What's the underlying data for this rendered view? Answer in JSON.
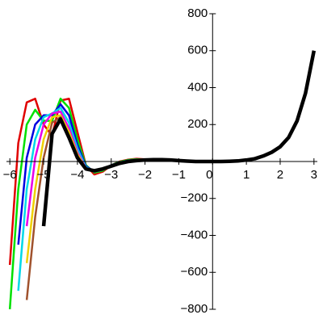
{
  "chart_data": {
    "type": "line",
    "x": [
      -6,
      -5.75,
      -5.5,
      -5.25,
      -5,
      -4.75,
      -4.5,
      -4.25,
      -4,
      -3.75,
      -3.5,
      -3.25,
      -3,
      -2.75,
      -2.5,
      -2.25,
      -2,
      -1.75,
      -1.5,
      -1.25,
      -1,
      -0.75,
      -0.5,
      -0.25,
      0,
      0.25,
      0.5,
      0.75,
      1,
      1.25,
      1.5,
      1.75,
      2,
      2.25,
      2.5,
      2.75,
      3
    ],
    "series": [
      {
        "color": "#e00000",
        "width": 2.5,
        "values": [
          -560,
          100,
          320,
          340,
          200,
          140,
          330,
          340,
          160,
          -20,
          -70,
          -55,
          -20,
          0,
          10,
          15,
          12,
          10,
          null,
          null,
          null,
          null,
          null,
          null,
          null,
          null,
          null,
          null,
          null,
          null,
          null,
          null,
          null,
          null,
          null,
          null,
          null
        ]
      },
      {
        "color": "#00e000",
        "width": 2.5,
        "values": [
          -800,
          -150,
          200,
          280,
          220,
          220,
          340,
          290,
          120,
          -20,
          -60,
          -50,
          -20,
          -2,
          8,
          12,
          10,
          10,
          null,
          null,
          null,
          null,
          null,
          null,
          null,
          null,
          null,
          null,
          null,
          null,
          null,
          null,
          null,
          null,
          null,
          null,
          null
        ]
      },
      {
        "color": "#0000e0",
        "width": 2.5,
        "values": [
          null,
          -450,
          20,
          200,
          250,
          250,
          310,
          250,
          90,
          -25,
          -55,
          -45,
          -20,
          -5,
          5,
          10,
          9,
          10,
          null,
          null,
          null,
          null,
          null,
          null,
          null,
          null,
          null,
          null,
          null,
          null,
          null,
          null,
          null,
          null,
          null,
          null,
          null
        ]
      },
      {
        "color": "#00d8e8",
        "width": 2.5,
        "values": [
          null,
          -700,
          -150,
          120,
          240,
          260,
          290,
          210,
          70,
          -30,
          -55,
          -45,
          -22,
          -6,
          4,
          9,
          9,
          10,
          null,
          null,
          null,
          null,
          null,
          null,
          null,
          null,
          null,
          null,
          null,
          null,
          null,
          null,
          null,
          null,
          null,
          null,
          null
        ]
      },
      {
        "color": "#e800e8",
        "width": 2.5,
        "values": [
          null,
          null,
          -350,
          20,
          200,
          260,
          270,
          180,
          50,
          -35,
          -55,
          -45,
          -24,
          -8,
          3,
          8,
          9,
          10,
          null,
          null,
          null,
          null,
          null,
          null,
          null,
          null,
          null,
          null,
          null,
          null,
          null,
          null,
          null,
          null,
          null,
          null,
          null
        ]
      },
      {
        "color": "#f0d000",
        "width": 2.5,
        "values": [
          null,
          null,
          -550,
          -150,
          120,
          240,
          250,
          160,
          40,
          -38,
          -53,
          -43,
          -25,
          -9,
          2,
          7,
          8,
          10,
          null,
          null,
          null,
          null,
          null,
          null,
          null,
          null,
          null,
          null,
          null,
          null,
          null,
          null,
          null,
          null,
          null,
          null,
          null
        ]
      },
      {
        "color": "#a0522d",
        "width": 2.5,
        "values": [
          null,
          null,
          -750,
          -300,
          20,
          210,
          240,
          140,
          30,
          -40,
          -52,
          -42,
          -25,
          -10,
          1,
          6,
          8,
          10,
          null,
          null,
          null,
          null,
          null,
          null,
          null,
          null,
          null,
          null,
          null,
          null,
          null,
          null,
          null,
          null,
          null,
          null,
          null
        ]
      },
      {
        "color": "#000000",
        "width": 4.5,
        "values": [
          null,
          null,
          null,
          null,
          -350,
          150,
          230,
          130,
          20,
          -40,
          -50,
          -40,
          -25,
          -10,
          0,
          5,
          8,
          10,
          10,
          8,
          5,
          2,
          0,
          0,
          0,
          0,
          1,
          3,
          8,
          15,
          30,
          50,
          80,
          130,
          220,
          370,
          600
        ]
      }
    ],
    "xlim": [
      -6.1,
      3.1
    ],
    "ylim": [
      -800,
      800
    ],
    "xticks": [
      {
        "value": -6,
        "label": "−6"
      },
      {
        "value": -5,
        "label": "−5"
      },
      {
        "value": -4,
        "label": "−4"
      },
      {
        "value": -3,
        "label": "−3"
      },
      {
        "value": -2,
        "label": "−2"
      },
      {
        "value": -1,
        "label": "−1"
      },
      0,
      1,
      2,
      3
    ],
    "yticks": [
      {
        "value": -800,
        "label": "−800"
      },
      {
        "value": -600,
        "label": "−600"
      },
      {
        "value": -400,
        "label": "−400"
      },
      {
        "value": -200,
        "label": "−200"
      },
      200,
      400,
      600,
      800
    ]
  }
}
